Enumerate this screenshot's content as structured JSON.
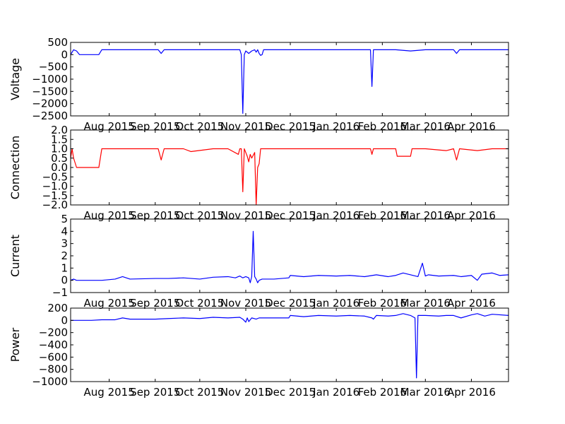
{
  "chart_data": [
    {
      "type": "line",
      "ylabel": "Voltage",
      "ylim": [
        -2500,
        500
      ],
      "yticks": [
        -2500,
        -2000,
        -1500,
        -1000,
        -500,
        0,
        500
      ],
      "ytick_labels": [
        "−2500",
        "−2000",
        "−1500",
        "−1000",
        "−500",
        "0",
        "500"
      ],
      "xticks": [
        "2015-08-01",
        "2015-09-01",
        "2015-10-01",
        "2015-11-01",
        "2015-12-01",
        "2016-01-01",
        "2016-02-01",
        "2016-03-01",
        "2016-04-01"
      ],
      "xtick_labels": [
        "Aug 2015",
        "Sep 2015",
        "Oct 2015",
        "Nov 2015",
        "Dec 2015",
        "Jan 2016",
        "Feb 2016",
        "Mar 2016",
        "Apr 2016"
      ],
      "xlim": [
        "2015-07-06",
        "2016-04-26"
      ],
      "color": "#0000ff",
      "grid": false,
      "series": [
        {
          "x": [
            "2015-07-06",
            "2015-07-08",
            "2015-07-10",
            "2015-07-12",
            "2015-07-20",
            "2015-07-25",
            "2015-07-27",
            "2015-08-15",
            "2015-09-03",
            "2015-09-05",
            "2015-09-07",
            "2015-09-20",
            "2015-10-10",
            "2015-10-28",
            "2015-10-29",
            "2015-10-30",
            "2015-10-31",
            "2015-11-01",
            "2015-11-02",
            "2015-11-03",
            "2015-11-05",
            "2015-11-07",
            "2015-11-08",
            "2015-11-09",
            "2015-11-10",
            "2015-11-11",
            "2015-11-12",
            "2015-11-13",
            "2015-11-15",
            "2015-11-16",
            "2015-11-17",
            "2015-11-20",
            "2015-12-10",
            "2016-01-10",
            "2016-01-24",
            "2016-01-25",
            "2016-01-26",
            "2016-01-28",
            "2016-02-10",
            "2016-02-20",
            "2016-03-01",
            "2016-03-20",
            "2016-03-22",
            "2016-03-24",
            "2016-04-05",
            "2016-04-15",
            "2016-04-26"
          ],
          "y": [
            0,
            200,
            150,
            0,
            0,
            0,
            200,
            200,
            200,
            50,
            200,
            200,
            200,
            200,
            0,
            -2400,
            0,
            150,
            100,
            50,
            150,
            200,
            100,
            200,
            50,
            -30,
            0,
            200,
            200,
            200,
            200,
            200,
            200,
            200,
            200,
            -1300,
            200,
            200,
            200,
            150,
            200,
            200,
            50,
            200,
            200,
            200,
            200
          ]
        }
      ]
    },
    {
      "type": "line",
      "ylabel": "Connection",
      "ylim": [
        -2.0,
        2.0
      ],
      "yticks": [
        -2.0,
        -1.5,
        -1.0,
        -0.5,
        0.0,
        0.5,
        1.0,
        1.5,
        2.0
      ],
      "ytick_labels": [
        "−2.0",
        "−1.5",
        "−1.0",
        "−0.5",
        "0.0",
        "0.5",
        "1.0",
        "1.5",
        "2.0"
      ],
      "xticks": [
        "2015-08-01",
        "2015-09-01",
        "2015-10-01",
        "2015-11-01",
        "2015-12-01",
        "2016-01-01",
        "2016-02-01",
        "2016-03-01",
        "2016-04-01"
      ],
      "xtick_labels": [
        "Aug 2015",
        "Sep 2015",
        "Oct 2015",
        "Nov 2015",
        "Dec 2015",
        "Jan 2016",
        "Feb 2016",
        "Mar 2016",
        "Apr 2016"
      ],
      "xlim": [
        "2015-07-06",
        "2016-04-26"
      ],
      "color": "#ff0000",
      "grid": false,
      "series": [
        {
          "x": [
            "2015-07-06",
            "2015-07-07",
            "2015-07-08",
            "2015-07-10",
            "2015-07-20",
            "2015-07-25",
            "2015-07-27",
            "2015-08-20",
            "2015-09-03",
            "2015-09-05",
            "2015-09-07",
            "2015-09-20",
            "2015-09-25",
            "2015-10-10",
            "2015-10-20",
            "2015-10-27",
            "2015-10-28",
            "2015-10-29",
            "2015-10-30",
            "2015-10-31",
            "2015-11-01",
            "2015-11-02",
            "2015-11-03",
            "2015-11-04",
            "2015-11-05",
            "2015-11-07",
            "2015-11-08",
            "2015-11-09",
            "2015-11-10",
            "2015-11-11",
            "2015-11-12",
            "2015-11-13",
            "2015-11-14",
            "2015-11-20",
            "2015-12-10",
            "2016-01-10",
            "2016-01-24",
            "2016-01-25",
            "2016-01-26",
            "2016-01-28",
            "2016-02-10",
            "2016-02-11",
            "2016-02-20",
            "2016-02-21",
            "2016-03-01",
            "2016-03-15",
            "2016-03-20",
            "2016-03-22",
            "2016-03-24",
            "2016-04-05",
            "2016-04-15",
            "2016-04-26"
          ],
          "y": [
            0.5,
            1.0,
            0.5,
            0,
            0,
            0,
            1.0,
            1.0,
            1.0,
            0.4,
            1.0,
            1.0,
            0.85,
            1.0,
            1.0,
            0.7,
            1.0,
            1.0,
            -1.3,
            1.0,
            0.8,
            0.6,
            0.3,
            0.7,
            0.5,
            0.8,
            -2.0,
            0,
            0.2,
            1.0,
            1.0,
            1.0,
            1.0,
            1.0,
            1.0,
            1.0,
            1.0,
            0.7,
            1.0,
            1.0,
            1.0,
            0.6,
            0.6,
            1.0,
            1.0,
            0.9,
            1.0,
            0.4,
            1.0,
            0.9,
            1.0,
            1.0
          ]
        }
      ]
    },
    {
      "type": "line",
      "ylabel": "Current",
      "ylim": [
        -1,
        5
      ],
      "yticks": [
        -1,
        0,
        1,
        2,
        3,
        4,
        5
      ],
      "ytick_labels": [
        "−1",
        "0",
        "1",
        "2",
        "3",
        "4",
        "5"
      ],
      "xticks": [
        "2015-08-01",
        "2015-09-01",
        "2015-10-01",
        "2015-11-01",
        "2015-12-01",
        "2016-01-01",
        "2016-02-01",
        "2016-03-01",
        "2016-04-01"
      ],
      "xtick_labels": [
        "Aug 2015",
        "Sep 2015",
        "Oct 2015",
        "Nov 2015",
        "Dec 2015",
        "Jan 2016",
        "Feb 2016",
        "Mar 2016",
        "Apr 2016"
      ],
      "xlim": [
        "2015-07-06",
        "2016-04-26"
      ],
      "color": "#0000ff",
      "grid": false,
      "series": [
        {
          "x": [
            "2015-07-06",
            "2015-07-08",
            "2015-07-10",
            "2015-07-20",
            "2015-07-27",
            "2015-08-05",
            "2015-08-10",
            "2015-08-15",
            "2015-09-01",
            "2015-09-10",
            "2015-09-20",
            "2015-10-01",
            "2015-10-10",
            "2015-10-20",
            "2015-10-25",
            "2015-10-28",
            "2015-10-30",
            "2015-11-01",
            "2015-11-03",
            "2015-11-04",
            "2015-11-05",
            "2015-11-06",
            "2015-11-07",
            "2015-11-08",
            "2015-11-09",
            "2015-11-10",
            "2015-11-12",
            "2015-11-15",
            "2015-11-20",
            "2015-11-30",
            "2015-12-01",
            "2015-12-10",
            "2015-12-20",
            "2016-01-01",
            "2016-01-10",
            "2016-01-20",
            "2016-01-28",
            "2016-02-05",
            "2016-02-10",
            "2016-02-15",
            "2016-02-25",
            "2016-02-28",
            "2016-03-01",
            "2016-03-03",
            "2016-03-10",
            "2016-03-20",
            "2016-03-25",
            "2016-04-01",
            "2016-04-05",
            "2016-04-08",
            "2016-04-15",
            "2016-04-20",
            "2016-04-26"
          ],
          "y": [
            0,
            0.1,
            0,
            0,
            0,
            0.1,
            0.3,
            0.1,
            0.15,
            0.15,
            0.2,
            0.1,
            0.25,
            0.3,
            0.2,
            0.35,
            0.2,
            0.3,
            0.2,
            -0.2,
            0.3,
            4.0,
            0.3,
            0.1,
            -0.2,
            0.0,
            0.1,
            0.1,
            0.1,
            0.2,
            0.4,
            0.3,
            0.4,
            0.35,
            0.4,
            0.3,
            0.45,
            0.3,
            0.4,
            0.6,
            0.3,
            1.4,
            0.35,
            0.45,
            0.35,
            0.4,
            0.3,
            0.4,
            0.0,
            0.5,
            0.6,
            0.4,
            0.45
          ]
        }
      ]
    },
    {
      "type": "line",
      "ylabel": "Power",
      "ylim": [
        -1000,
        200
      ],
      "yticks": [
        -1000,
        -800,
        -600,
        -400,
        -200,
        0,
        200
      ],
      "ytick_labels": [
        "−1000",
        "−800",
        "−600",
        "−400",
        "−200",
        "0",
        "200"
      ],
      "xticks": [
        "2015-08-01",
        "2015-09-01",
        "2015-10-01",
        "2015-11-01",
        "2015-12-01",
        "2016-01-01",
        "2016-02-01",
        "2016-03-01",
        "2016-04-01"
      ],
      "xtick_labels": [
        "Aug 2015",
        "Sep 2015",
        "Oct 2015",
        "Nov 2015",
        "Dec 2015",
        "Jan 2016",
        "Feb 2016",
        "Mar 2016",
        "Apr 2016"
      ],
      "xlim": [
        "2015-07-06",
        "2016-04-26"
      ],
      "color": "#0000ff",
      "grid": false,
      "series": [
        {
          "x": [
            "2015-07-06",
            "2015-07-20",
            "2015-07-27",
            "2015-08-05",
            "2015-08-10",
            "2015-08-15",
            "2015-09-01",
            "2015-09-10",
            "2015-09-20",
            "2015-10-01",
            "2015-10-10",
            "2015-10-20",
            "2015-10-28",
            "2015-10-30",
            "2015-11-01",
            "2015-11-02",
            "2015-11-03",
            "2015-11-05",
            "2015-11-08",
            "2015-11-10",
            "2015-11-15",
            "2015-11-25",
            "2015-11-30",
            "2015-12-01",
            "2015-12-10",
            "2015-12-20",
            "2016-01-01",
            "2016-01-10",
            "2016-01-20",
            "2016-01-25",
            "2016-01-26",
            "2016-01-28",
            "2016-02-05",
            "2016-02-10",
            "2016-02-15",
            "2016-02-20",
            "2016-02-23",
            "2016-02-24",
            "2016-02-25",
            "2016-03-01",
            "2016-03-10",
            "2016-03-15",
            "2016-03-20",
            "2016-03-25",
            "2016-04-01",
            "2016-04-05",
            "2016-04-10",
            "2016-04-15",
            "2016-04-26"
          ],
          "y": [
            0,
            0,
            10,
            10,
            40,
            20,
            20,
            30,
            40,
            30,
            50,
            40,
            50,
            20,
            -30,
            40,
            -20,
            40,
            20,
            40,
            40,
            40,
            40,
            80,
            60,
            80,
            70,
            80,
            70,
            40,
            20,
            80,
            70,
            80,
            110,
            80,
            40,
            -940,
            80,
            80,
            70,
            80,
            80,
            40,
            90,
            110,
            70,
            100,
            80
          ]
        }
      ]
    }
  ]
}
